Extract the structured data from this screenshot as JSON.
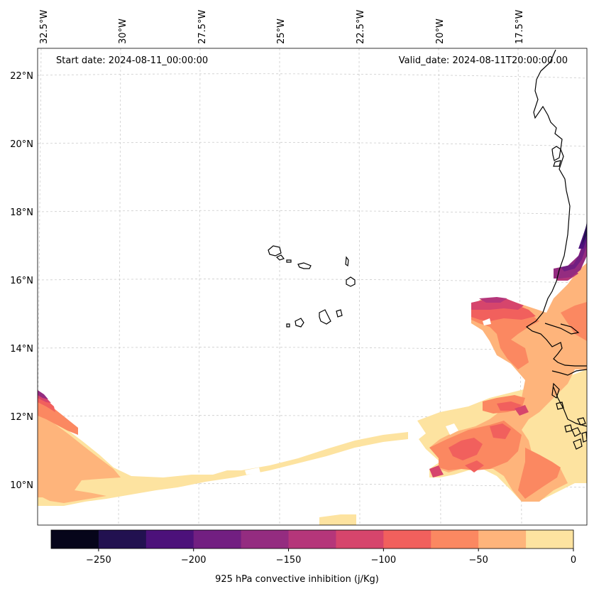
{
  "header": {
    "start_date": "Start date: 2024-08-11_00:00:00",
    "valid_date": "Valid_date: 2024-08-11T20:00:00.00"
  },
  "axes": {
    "lon_labels": [
      "32.5°W",
      "30°W",
      "27.5°W",
      "25°W",
      "22.5°W",
      "20°W",
      "17.5°W"
    ],
    "lat_labels": [
      "22°N",
      "20°N",
      "18°N",
      "16°N",
      "14°N",
      "12°N",
      "10°N"
    ]
  },
  "colorbar": {
    "label": "925 hPa convective inhibition (j/Kg)",
    "tick_labels": [
      "−250",
      "−200",
      "−150",
      "−100",
      "−50",
      "0"
    ],
    "bins": [
      {
        "from": -275,
        "to": -250,
        "color": "#06051a"
      },
      {
        "from": -250,
        "to": -225,
        "color": "#221150"
      },
      {
        "from": -225,
        "to": -200,
        "color": "#4c117a"
      },
      {
        "from": -200,
        "to": -175,
        "color": "#721f81"
      },
      {
        "from": -175,
        "to": -150,
        "color": "#942c80"
      },
      {
        "from": -150,
        "to": -125,
        "color": "#b5367a"
      },
      {
        "from": -125,
        "to": -100,
        "color": "#d6456c"
      },
      {
        "from": -100,
        "to": -75,
        "color": "#f1605d"
      },
      {
        "from": -75,
        "to": -50,
        "color": "#fb8861"
      },
      {
        "from": -50,
        "to": -25,
        "color": "#feb47b"
      },
      {
        "from": -25,
        "to": 0,
        "color": "#fde3a0"
      }
    ]
  },
  "colors": {
    "coast": "#000000",
    "grid": "#cccccc"
  }
}
